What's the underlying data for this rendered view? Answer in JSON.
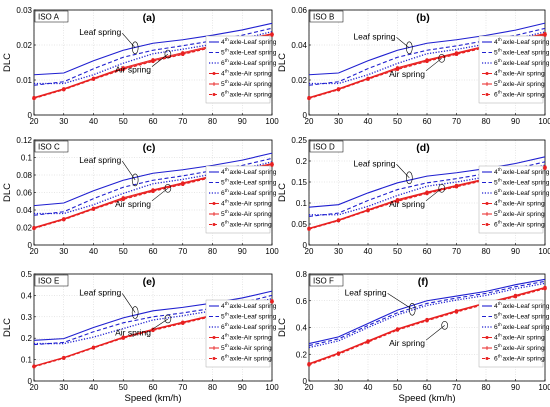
{
  "figure": {
    "x_label": "Speed (km/h)",
    "y_label": "DLC"
  },
  "legend_entries": [
    {
      "sup": "th",
      "pre": "4",
      "text": "axle-Leaf spring",
      "color": "#1f1fd0",
      "dash": "solid",
      "marker": "none"
    },
    {
      "sup": "th",
      "pre": "5",
      "text": "axle-Leaf spring",
      "color": "#1f1fd0",
      "dash": "dashed",
      "marker": "none"
    },
    {
      "sup": "th",
      "pre": "6",
      "text": "axle-Leaf spring",
      "color": "#1f1fd0",
      "dash": "dotted",
      "marker": "none"
    },
    {
      "sup": "th",
      "pre": "4",
      "text": "axle-Air spring",
      "color": "#e82020",
      "dash": "solid",
      "marker": "dot"
    },
    {
      "sup": "th",
      "pre": "5",
      "text": "axle-Air spring",
      "color": "#e82020",
      "dash": "solid",
      "marker": "star"
    },
    {
      "sup": "th",
      "pre": "6",
      "text": "axle-Air spring",
      "color": "#e82020",
      "dash": "dashed",
      "marker": "dot"
    }
  ],
  "colors": {
    "leaf": "#1f1fd0",
    "air": "#e82020",
    "axis": "#000000",
    "grid": "#cfcfcf"
  },
  "chart_data": [
    {
      "type": "line",
      "panel": "(a)",
      "iso": "ISO A",
      "annotations": [
        "Leaf spring",
        "Air spring"
      ],
      "x": [
        20,
        30,
        40,
        50,
        60,
        70,
        80,
        90,
        100
      ],
      "xlim": [
        20,
        100
      ],
      "ylim": [
        0,
        0.03
      ],
      "yticks": [
        "0",
        "0.01",
        "0.02",
        "0.03"
      ],
      "xticks": [
        "20",
        "30",
        "40",
        "50",
        "60",
        "70",
        "80",
        "90",
        "100"
      ],
      "xlabel": "",
      "ylabel": "DLC",
      "series": [
        {
          "name": "4th axle-Leaf spring",
          "values": [
            0.0115,
            0.012,
            0.0155,
            0.0185,
            0.0205,
            0.0215,
            0.0228,
            0.0243,
            0.0262
          ]
        },
        {
          "name": "5th axle-Leaf spring",
          "values": [
            0.0085,
            0.0095,
            0.0132,
            0.0165,
            0.0185,
            0.0198,
            0.0212,
            0.0228,
            0.0248
          ]
        },
        {
          "name": "6th axle-Leaf spring",
          "values": [
            0.009,
            0.009,
            0.0115,
            0.0148,
            0.0175,
            0.0188,
            0.0202,
            0.0218,
            0.0238
          ]
        },
        {
          "name": "4th axle-Air spring",
          "values": [
            0.005,
            0.0075,
            0.0105,
            0.0135,
            0.0158,
            0.0178,
            0.0198,
            0.0215,
            0.0232
          ]
        },
        {
          "name": "5th axle-Air spring",
          "values": [
            0.0048,
            0.0073,
            0.0103,
            0.0132,
            0.0155,
            0.0175,
            0.0195,
            0.0212,
            0.023
          ]
        },
        {
          "name": "6th axle-Air spring",
          "values": [
            0.0047,
            0.0072,
            0.0102,
            0.013,
            0.0153,
            0.0173,
            0.0193,
            0.021,
            0.0228
          ]
        }
      ]
    },
    {
      "type": "line",
      "panel": "(b)",
      "iso": "ISO B",
      "annotations": [
        "Leaf spring",
        "Air spring"
      ],
      "x": [
        20,
        30,
        40,
        50,
        60,
        70,
        80,
        90,
        100
      ],
      "xlim": [
        20,
        100
      ],
      "ylim": [
        0,
        0.06
      ],
      "yticks": [
        "0",
        "0.02",
        "0.04",
        "0.06"
      ],
      "xticks": [
        "20",
        "30",
        "40",
        "50",
        "60",
        "70",
        "80",
        "90",
        "100"
      ],
      "xlabel": "",
      "ylabel": "DLC",
      "series": [
        {
          "name": "4th axle-Leaf spring",
          "values": [
            0.023,
            0.024,
            0.031,
            0.037,
            0.041,
            0.043,
            0.0455,
            0.0485,
            0.0525
          ]
        },
        {
          "name": "5th axle-Leaf spring",
          "values": [
            0.017,
            0.019,
            0.0265,
            0.033,
            0.037,
            0.0395,
            0.0425,
            0.0455,
            0.0495
          ]
        },
        {
          "name": "6th axle-Leaf spring",
          "values": [
            0.018,
            0.018,
            0.023,
            0.0295,
            0.035,
            0.0375,
            0.0405,
            0.0435,
            0.0475
          ]
        },
        {
          "name": "4th axle-Air spring",
          "values": [
            0.01,
            0.015,
            0.021,
            0.027,
            0.0315,
            0.0355,
            0.0395,
            0.043,
            0.0465
          ]
        },
        {
          "name": "5th axle-Air spring",
          "values": [
            0.0096,
            0.0146,
            0.0206,
            0.0264,
            0.031,
            0.035,
            0.039,
            0.0424,
            0.046
          ]
        },
        {
          "name": "6th axle-Air spring",
          "values": [
            0.0094,
            0.0144,
            0.0204,
            0.026,
            0.0306,
            0.0346,
            0.0386,
            0.042,
            0.0456
          ]
        }
      ]
    },
    {
      "type": "line",
      "panel": "(c)",
      "iso": "ISO C",
      "annotations": [
        "Leaf spring",
        "Air spring"
      ],
      "x": [
        20,
        30,
        40,
        50,
        60,
        70,
        80,
        90,
        100
      ],
      "xlim": [
        20,
        100
      ],
      "ylim": [
        0,
        0.12
      ],
      "yticks": [
        "0",
        "0.02",
        "0.04",
        "0.06",
        "0.08",
        "0.1",
        "0.12"
      ],
      "xticks": [
        "20",
        "30",
        "40",
        "50",
        "60",
        "70",
        "80",
        "90",
        "100"
      ],
      "xlabel": "",
      "ylabel": "DLC",
      "series": [
        {
          "name": "4th axle-Leaf spring",
          "values": [
            0.045,
            0.048,
            0.062,
            0.074,
            0.082,
            0.086,
            0.091,
            0.097,
            0.105
          ]
        },
        {
          "name": "5th axle-Leaf spring",
          "values": [
            0.034,
            0.038,
            0.053,
            0.066,
            0.074,
            0.079,
            0.085,
            0.091,
            0.099
          ]
        },
        {
          "name": "6th axle-Leaf spring",
          "values": [
            0.036,
            0.036,
            0.046,
            0.059,
            0.07,
            0.075,
            0.081,
            0.087,
            0.095
          ]
        },
        {
          "name": "4th axle-Air spring",
          "values": [
            0.02,
            0.03,
            0.042,
            0.054,
            0.063,
            0.071,
            0.079,
            0.086,
            0.093
          ]
        },
        {
          "name": "5th axle-Air spring",
          "values": [
            0.0192,
            0.0292,
            0.0412,
            0.0528,
            0.062,
            0.07,
            0.078,
            0.0848,
            0.092
          ]
        },
        {
          "name": "6th axle-Air spring",
          "values": [
            0.0188,
            0.0288,
            0.0408,
            0.052,
            0.0612,
            0.0692,
            0.0772,
            0.084,
            0.0912
          ]
        }
      ]
    },
    {
      "type": "line",
      "panel": "(d)",
      "iso": "ISO D",
      "annotations": [
        "Leaf spring",
        "Air spring"
      ],
      "x": [
        20,
        30,
        40,
        50,
        60,
        70,
        80,
        90,
        100
      ],
      "xlim": [
        20,
        100
      ],
      "ylim": [
        0,
        0.25
      ],
      "yticks": [
        "0",
        "0.05",
        "0.1",
        "0.15",
        "0.2",
        "0.25"
      ],
      "xticks": [
        "20",
        "30",
        "40",
        "50",
        "60",
        "70",
        "80",
        "90",
        "100"
      ],
      "xlabel": "",
      "ylabel": "DLC",
      "series": [
        {
          "name": "4th axle-Leaf spring",
          "values": [
            0.09,
            0.096,
            0.124,
            0.148,
            0.164,
            0.172,
            0.182,
            0.194,
            0.21
          ]
        },
        {
          "name": "5th axle-Leaf spring",
          "values": [
            0.068,
            0.076,
            0.106,
            0.132,
            0.148,
            0.158,
            0.17,
            0.182,
            0.198
          ]
        },
        {
          "name": "6th axle-Leaf spring",
          "values": [
            0.072,
            0.072,
            0.092,
            0.118,
            0.14,
            0.15,
            0.162,
            0.174,
            0.19
          ]
        },
        {
          "name": "4th axle-Air spring",
          "values": [
            0.04,
            0.06,
            0.084,
            0.108,
            0.126,
            0.142,
            0.158,
            0.172,
            0.186
          ]
        },
        {
          "name": "5th axle-Air spring",
          "values": [
            0.0384,
            0.0584,
            0.0824,
            0.1056,
            0.124,
            0.14,
            0.156,
            0.1696,
            0.184
          ]
        },
        {
          "name": "6th axle-Air spring",
          "values": [
            0.0376,
            0.0576,
            0.0816,
            0.104,
            0.1224,
            0.1384,
            0.1544,
            0.168,
            0.1824
          ]
        }
      ]
    },
    {
      "type": "line",
      "panel": "(e)",
      "iso": "ISO E",
      "annotations": [
        "Leaf spring",
        "Air spring"
      ],
      "x": [
        20,
        30,
        40,
        50,
        60,
        70,
        80,
        90,
        100
      ],
      "xlim": [
        20,
        100
      ],
      "ylim": [
        0,
        0.5
      ],
      "yticks": [
        "0",
        "0.1",
        "0.2",
        "0.3",
        "0.4",
        "0.5"
      ],
      "xticks": [
        "20",
        "30",
        "40",
        "50",
        "60",
        "70",
        "80",
        "90",
        "100"
      ],
      "xlabel": "Speed (km/h)",
      "ylabel": "DLC",
      "series": [
        {
          "name": "4th axle-Leaf spring",
          "values": [
            0.19,
            0.198,
            0.25,
            0.295,
            0.328,
            0.344,
            0.364,
            0.388,
            0.42
          ]
        },
        {
          "name": "5th axle-Leaf spring",
          "values": [
            0.17,
            0.18,
            0.23,
            0.272,
            0.3,
            0.318,
            0.34,
            0.366,
            0.4
          ]
        },
        {
          "name": "6th axle-Leaf spring",
          "values": [
            0.175,
            0.175,
            0.205,
            0.245,
            0.285,
            0.305,
            0.328,
            0.352,
            0.385
          ]
        },
        {
          "name": "4th axle-Air spring",
          "values": [
            0.07,
            0.11,
            0.158,
            0.205,
            0.242,
            0.275,
            0.308,
            0.34,
            0.375
          ]
        },
        {
          "name": "5th axle-Air spring",
          "values": [
            0.068,
            0.108,
            0.156,
            0.202,
            0.239,
            0.272,
            0.305,
            0.337,
            0.372
          ]
        },
        {
          "name": "6th axle-Air spring",
          "values": [
            0.066,
            0.106,
            0.154,
            0.2,
            0.236,
            0.269,
            0.302,
            0.334,
            0.369
          ]
        }
      ]
    },
    {
      "type": "line",
      "panel": "(f)",
      "iso": "ISO F",
      "annotations": [
        "Leaf spring",
        "Air spring"
      ],
      "x": [
        20,
        30,
        40,
        50,
        60,
        70,
        80,
        90,
        100
      ],
      "xlim": [
        20,
        100
      ],
      "ylim": [
        0,
        0.8
      ],
      "yticks": [
        "0",
        "0.2",
        "0.4",
        "0.6",
        "0.8"
      ],
      "xticks": [
        "20",
        "30",
        "40",
        "50",
        "60",
        "70",
        "80",
        "90",
        "100"
      ],
      "xlabel": "Speed (km/h)",
      "ylabel": "DLC",
      "series": [
        {
          "name": "4th axle-Leaf spring",
          "values": [
            0.28,
            0.33,
            0.43,
            0.53,
            0.6,
            0.635,
            0.67,
            0.72,
            0.76
          ]
        },
        {
          "name": "5th axle-Leaf spring",
          "values": [
            0.265,
            0.315,
            0.415,
            0.51,
            0.58,
            0.62,
            0.655,
            0.705,
            0.745
          ]
        },
        {
          "name": "6th axle-Leaf spring",
          "values": [
            0.25,
            0.3,
            0.4,
            0.495,
            0.565,
            0.605,
            0.64,
            0.69,
            0.73
          ]
        },
        {
          "name": "4th axle-Air spring",
          "values": [
            0.13,
            0.21,
            0.3,
            0.39,
            0.46,
            0.525,
            0.585,
            0.64,
            0.7
          ]
        },
        {
          "name": "5th axle-Air spring",
          "values": [
            0.125,
            0.205,
            0.295,
            0.385,
            0.455,
            0.52,
            0.58,
            0.635,
            0.695
          ]
        },
        {
          "name": "6th axle-Air spring",
          "values": [
            0.12,
            0.2,
            0.29,
            0.38,
            0.45,
            0.515,
            0.575,
            0.63,
            0.69
          ]
        }
      ]
    }
  ]
}
